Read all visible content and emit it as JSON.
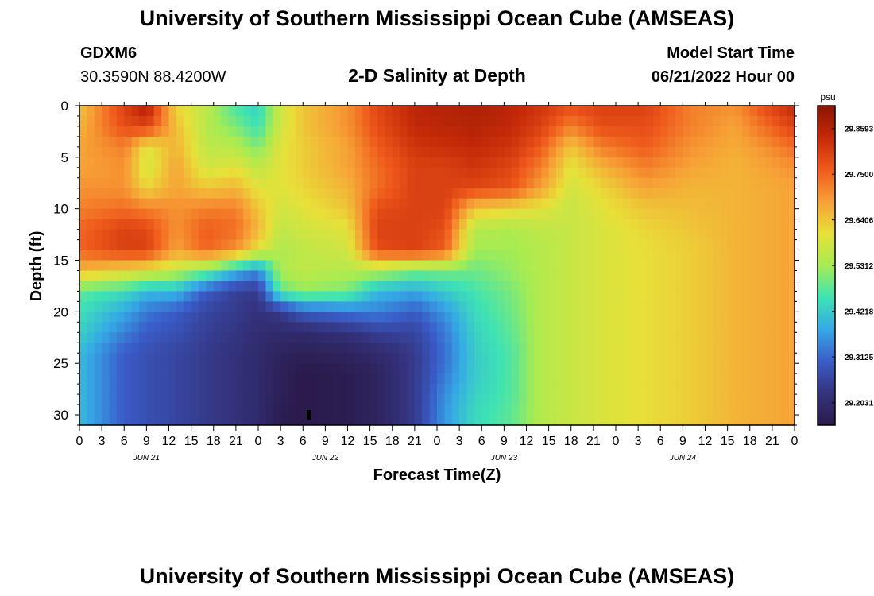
{
  "header": {
    "title": "University of Southern Mississippi Ocean Cube (AMSEAS)",
    "station_id": "GDXM6",
    "coordinates": "30.3590N  88.4200W",
    "subtitle": "2-D Salinity at Depth",
    "model_start_label": "Model Start Time",
    "model_start_value": "06/21/2022 Hour 00"
  },
  "footer": {
    "repeat_title": "University of Southern Mississippi Ocean Cube (AMSEAS)"
  },
  "chart_data": {
    "type": "heatmap",
    "title": "2-D Salinity at Depth",
    "xlabel": "Forecast Time(Z)",
    "ylabel": "Depth (ft)",
    "ylim": [
      0,
      31
    ],
    "y_reversed": true,
    "y_ticks": [
      "0",
      "5",
      "10",
      "15",
      "20",
      "25",
      "30"
    ],
    "x_tick_labels": [
      "0",
      "3",
      "6",
      "9",
      "12",
      "15",
      "18",
      "21",
      "0",
      "3",
      "6",
      "9",
      "12",
      "15",
      "18",
      "21",
      "0",
      "3",
      "6",
      "9",
      "12",
      "15",
      "18",
      "21",
      "0",
      "3",
      "6",
      "9",
      "12",
      "15",
      "18",
      "21",
      "0"
    ],
    "date_labels": [
      {
        "label": "JUN 21",
        "hour": 9
      },
      {
        "label": "JUN 22",
        "hour": 33
      },
      {
        "label": "JUN 23",
        "hour": 57
      },
      {
        "label": "JUN 24",
        "hour": 81
      }
    ],
    "x_range_hours": [
      0,
      96
    ],
    "colorbar": {
      "unit": "psu",
      "min": 29.149,
      "max": 29.914,
      "ticks": [
        "29.8593",
        "29.7500",
        "29.6406",
        "29.5312",
        "29.4218",
        "29.3125",
        "29.2031"
      ],
      "tick_values": [
        29.8593,
        29.75,
        29.6406,
        29.5312,
        29.4218,
        29.3125,
        29.2031
      ],
      "colors": [
        "#2a1a4a",
        "#34337e",
        "#3a5cc8",
        "#35a9e6",
        "#3ee3b3",
        "#a6ec52",
        "#e8e039",
        "#f7a036",
        "#ef5a1c",
        "#c42a08",
        "#8c1400"
      ]
    },
    "depths_ft": [
      0,
      2,
      4,
      6,
      8,
      10,
      12,
      14,
      16,
      18,
      20,
      22,
      24,
      26,
      28,
      30
    ],
    "columns": [
      {
        "hour": 0,
        "salinity": [
          29.64,
          29.66,
          29.68,
          29.68,
          29.7,
          29.72,
          29.75,
          29.75,
          29.66,
          29.48,
          29.45,
          29.43,
          29.4,
          29.4,
          29.4,
          29.4
        ]
      },
      {
        "hour": 6,
        "salinity": [
          29.8,
          29.78,
          29.72,
          29.7,
          29.7,
          29.74,
          29.8,
          29.8,
          29.62,
          29.45,
          29.38,
          29.34,
          29.3,
          29.3,
          29.3,
          29.3
        ]
      },
      {
        "hour": 9,
        "salinity": [
          29.87,
          29.8,
          29.6,
          29.58,
          29.62,
          29.72,
          29.79,
          29.8,
          29.6,
          29.4,
          29.33,
          29.3,
          29.28,
          29.28,
          29.28,
          29.28
        ]
      },
      {
        "hour": 13,
        "salinity": [
          29.62,
          29.65,
          29.66,
          29.68,
          29.68,
          29.7,
          29.7,
          29.68,
          29.56,
          29.4,
          29.3,
          29.28,
          29.26,
          29.26,
          29.26,
          29.26
        ]
      },
      {
        "hour": 17,
        "salinity": [
          29.56,
          29.55,
          29.56,
          29.58,
          29.64,
          29.72,
          29.76,
          29.75,
          29.5,
          29.3,
          29.26,
          29.25,
          29.24,
          29.24,
          29.24,
          29.24
        ]
      },
      {
        "hour": 21,
        "salinity": [
          29.46,
          29.5,
          29.55,
          29.6,
          29.66,
          29.72,
          29.74,
          29.7,
          29.4,
          29.25,
          29.24,
          29.23,
          29.22,
          29.22,
          29.22,
          29.22
        ]
      },
      {
        "hour": 24,
        "salinity": [
          29.43,
          29.45,
          29.5,
          29.56,
          29.6,
          29.64,
          29.66,
          29.6,
          29.35,
          29.24,
          29.22,
          29.21,
          29.2,
          29.2,
          29.2,
          29.2
        ]
      },
      {
        "hour": 27,
        "salinity": [
          29.58,
          29.58,
          29.6,
          29.6,
          29.6,
          29.58,
          29.56,
          29.54,
          29.54,
          29.48,
          29.24,
          29.2,
          29.18,
          29.17,
          29.17,
          29.16
        ]
      },
      {
        "hour": 30,
        "salinity": [
          29.64,
          29.64,
          29.63,
          29.63,
          29.62,
          29.6,
          29.58,
          29.56,
          29.56,
          29.52,
          29.3,
          29.2,
          29.17,
          29.15,
          29.15,
          29.15
        ]
      },
      {
        "hour": 36,
        "salinity": [
          29.7,
          29.7,
          29.68,
          29.68,
          29.66,
          29.64,
          29.6,
          29.58,
          29.55,
          29.5,
          29.33,
          29.22,
          29.18,
          29.16,
          29.16,
          29.16
        ]
      },
      {
        "hour": 40,
        "salinity": [
          29.79,
          29.78,
          29.76,
          29.74,
          29.74,
          29.78,
          29.8,
          29.78,
          29.55,
          29.4,
          29.34,
          29.25,
          29.2,
          29.18,
          29.18,
          29.18
        ]
      },
      {
        "hour": 45,
        "salinity": [
          29.85,
          29.84,
          29.82,
          29.8,
          29.8,
          29.8,
          29.8,
          29.8,
          29.5,
          29.38,
          29.3,
          29.26,
          29.24,
          29.24,
          29.24,
          29.24
        ]
      },
      {
        "hour": 49,
        "salinity": [
          29.86,
          29.85,
          29.83,
          29.8,
          29.8,
          29.8,
          29.78,
          29.76,
          29.5,
          29.42,
          29.36,
          29.33,
          29.32,
          29.33,
          29.35,
          29.36
        ]
      },
      {
        "hour": 53,
        "salinity": [
          29.87,
          29.86,
          29.84,
          29.82,
          29.79,
          29.64,
          29.55,
          29.53,
          29.49,
          29.46,
          29.44,
          29.43,
          29.42,
          29.42,
          29.43,
          29.44
        ]
      },
      {
        "hour": 58,
        "salinity": [
          29.85,
          29.84,
          29.82,
          29.79,
          29.77,
          29.62,
          29.54,
          29.53,
          29.52,
          29.5,
          29.49,
          29.48,
          29.47,
          29.47,
          29.47,
          29.48
        ]
      },
      {
        "hour": 62,
        "salinity": [
          29.82,
          29.8,
          29.76,
          29.72,
          29.68,
          29.6,
          29.56,
          29.55,
          29.55,
          29.55,
          29.55,
          29.55,
          29.55,
          29.55,
          29.55,
          29.55
        ]
      },
      {
        "hour": 66,
        "salinity": [
          29.78,
          29.72,
          29.64,
          29.6,
          29.58,
          29.57,
          29.57,
          29.57,
          29.57,
          29.57,
          29.57,
          29.57,
          29.57,
          29.57,
          29.57,
          29.57
        ]
      },
      {
        "hour": 70,
        "salinity": [
          29.8,
          29.78,
          29.72,
          29.66,
          29.62,
          29.6,
          29.59,
          29.59,
          29.59,
          29.59,
          29.59,
          29.59,
          29.59,
          29.59,
          29.59,
          29.59
        ]
      },
      {
        "hour": 76,
        "salinity": [
          29.8,
          29.78,
          29.76,
          29.72,
          29.68,
          29.64,
          29.62,
          29.61,
          29.61,
          29.61,
          29.61,
          29.61,
          29.61,
          29.61,
          29.61,
          29.61
        ]
      },
      {
        "hour": 82,
        "salinity": [
          29.72,
          29.72,
          29.7,
          29.68,
          29.66,
          29.65,
          29.64,
          29.63,
          29.63,
          29.63,
          29.63,
          29.63,
          29.63,
          29.63,
          29.63,
          29.63
        ]
      },
      {
        "hour": 88,
        "salinity": [
          29.7,
          29.68,
          29.67,
          29.66,
          29.66,
          29.66,
          29.66,
          29.66,
          29.66,
          29.66,
          29.66,
          29.66,
          29.66,
          29.66,
          29.66,
          29.66
        ]
      },
      {
        "hour": 92,
        "salinity": [
          29.78,
          29.74,
          29.7,
          29.68,
          29.67,
          29.67,
          29.67,
          29.67,
          29.67,
          29.67,
          29.67,
          29.67,
          29.67,
          29.67,
          29.67,
          29.67
        ]
      },
      {
        "hour": 96,
        "salinity": [
          29.84,
          29.8,
          29.74,
          29.7,
          29.68,
          29.68,
          29.68,
          29.68,
          29.68,
          29.68,
          29.68,
          29.68,
          29.68,
          29.68,
          29.68,
          29.68
        ]
      }
    ]
  }
}
